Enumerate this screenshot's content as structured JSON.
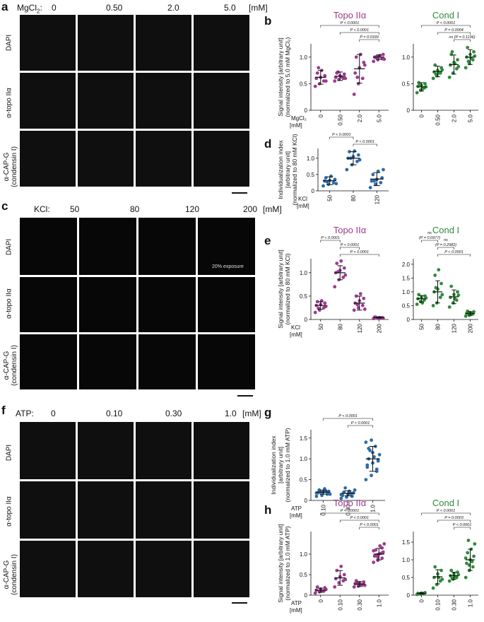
{
  "a": {
    "label": "a",
    "header_prefix": "MgCl",
    "header_sub": "2",
    "header_colon": ":",
    "cols": [
      "0",
      "0.50",
      "2.0",
      "5.0"
    ],
    "unit": "[mM]",
    "rows": [
      [
        "DAPI"
      ],
      [
        "α-topo IIα"
      ],
      [
        "α-CAP-G",
        "(condensin I)"
      ]
    ]
  },
  "c": {
    "label": "c",
    "header_prefix": "KCl:",
    "cols": [
      "50",
      "80",
      "120",
      "200"
    ],
    "unit": "[mM]",
    "rows": [
      [
        "DAPI"
      ],
      [
        "α-topo IIα"
      ],
      [
        "α-CAP-G",
        "(condensin I)"
      ]
    ],
    "note": "20% exposure"
  },
  "f": {
    "label": "f",
    "header_prefix": "ATP:",
    "cols": [
      "0",
      "0.10",
      "0.30",
      "1.0"
    ],
    "unit": "[mM]",
    "rows": [
      [
        "DAPI"
      ],
      [
        "α-topo IIα"
      ],
      [
        "α-CAP-G",
        "(condensin I)"
      ]
    ]
  },
  "colors": {
    "topo": "#9b3b8e",
    "cond": "#2f8b3a",
    "indiv": "#2e6ba8"
  },
  "chart_data": [
    {
      "panel": "b",
      "title": "Topo IIα",
      "type": "scatter",
      "ylabel": [
        "Signal intensity  [arbitrary unit]",
        "(normalized to 5.0 mM MgCl₂)"
      ],
      "xaxis_title": [
        "MgCl₂",
        "[mM]"
      ],
      "categories": [
        "0",
        "0.50",
        "2.0",
        "5.0"
      ],
      "ylim": [
        0,
        1.25
      ],
      "yticks": [
        0,
        0.5,
        1.0
      ],
      "ytick_labels": [
        "0",
        "0.5",
        "1.0"
      ],
      "means": [
        0.62,
        0.64,
        0.78,
        1.0
      ],
      "sd": [
        0.13,
        0.08,
        0.27,
        0.04
      ],
      "points": [
        [
          0.45,
          0.5,
          0.55,
          0.6,
          0.62,
          0.65,
          0.7,
          0.75,
          0.55,
          0.8
        ],
        [
          0.55,
          0.58,
          0.6,
          0.62,
          0.65,
          0.68,
          0.7,
          0.63,
          0.6,
          0.72
        ],
        [
          0.3,
          0.5,
          0.6,
          0.7,
          0.8,
          0.9,
          1.0,
          1.05,
          0.85,
          0.62
        ],
        [
          0.92,
          0.95,
          0.97,
          1.0,
          1.02,
          1.05,
          0.99,
          1.03,
          0.96,
          1.01
        ]
      ],
      "comparisons": [
        {
          "from": 0,
          "to": 3,
          "label": "P < 0.0001"
        },
        {
          "from": 1,
          "to": 3,
          "label": "P < 0.0001"
        },
        {
          "from": 2,
          "to": 3,
          "label": "P = 0.0339"
        }
      ]
    },
    {
      "panel": "b",
      "title": "Cond I",
      "type": "scatter",
      "categories": [
        "0",
        "0.50",
        "2.0",
        "5.0"
      ],
      "ylim": [
        0,
        1.25
      ],
      "yticks": [
        0,
        0.5,
        1.0
      ],
      "ytick_labels": [
        "0",
        "0.5",
        "1.0"
      ],
      "means": [
        0.44,
        0.73,
        0.86,
        1.0
      ],
      "sd": [
        0.08,
        0.1,
        0.18,
        0.14
      ],
      "points": [
        [
          0.33,
          0.38,
          0.42,
          0.45,
          0.47,
          0.5,
          0.52,
          0.4,
          0.44,
          0.48
        ],
        [
          0.6,
          0.65,
          0.7,
          0.72,
          0.75,
          0.8,
          0.85,
          0.7,
          0.76,
          0.68
        ],
        [
          0.62,
          0.7,
          0.78,
          0.85,
          0.9,
          0.95,
          1.05,
          0.88,
          0.82,
          1.1
        ],
        [
          0.8,
          0.88,
          0.95,
          1.0,
          1.05,
          1.1,
          1.18,
          0.98,
          1.02,
          0.92
        ]
      ],
      "comparisons": [
        {
          "from": 0,
          "to": 3,
          "label": "P < 0.0001"
        },
        {
          "from": 1,
          "to": 3,
          "label": "P = 0.0004"
        },
        {
          "from": 2,
          "to": 3,
          "label": "ns  (P = 0.1196)"
        }
      ]
    },
    {
      "panel": "d",
      "type": "scatter",
      "ylabel": [
        "Individualization index",
        "[arbitrary unit]",
        "(normalized to 80 mM KCl)"
      ],
      "xaxis_title": [
        "KCl",
        "[mM]"
      ],
      "categories": [
        "50",
        "80",
        "120"
      ],
      "ylim": [
        0,
        1.3
      ],
      "yticks": [
        0,
        0.5,
        1.0
      ],
      "ytick_labels": [
        "0",
        "0.5",
        "1.0"
      ],
      "means": [
        0.31,
        1.0,
        0.36
      ],
      "sd": [
        0.12,
        0.2,
        0.2
      ],
      "points": [
        [
          0.15,
          0.2,
          0.25,
          0.3,
          0.32,
          0.35,
          0.4,
          0.45,
          0.22,
          0.28
        ],
        [
          0.65,
          0.8,
          0.9,
          1.0,
          1.05,
          1.1,
          1.2,
          1.22,
          0.95,
          1.0
        ],
        [
          0.1,
          0.2,
          0.25,
          0.3,
          0.35,
          0.4,
          0.5,
          0.6,
          0.65,
          0.3
        ]
      ],
      "comparisons": [
        {
          "from": 0,
          "to": 1,
          "label": "P < 0.0001"
        },
        {
          "from": 1,
          "to": 2,
          "label": "P < 0.0001"
        }
      ]
    },
    {
      "panel": "e",
      "title": "Topo IIα",
      "type": "scatter",
      "ylabel": [
        "Signal intensity [arbitrary unit]",
        "(normalized to 80 mM KCl)"
      ],
      "xaxis_title": [
        "KCl",
        "[mM]"
      ],
      "categories": [
        "50",
        "80",
        "120",
        "200"
      ],
      "ylim": [
        0,
        1.3
      ],
      "yticks": [
        0,
        0.5,
        1.0
      ],
      "ytick_labels": [
        "0",
        "0.5",
        "1.0"
      ],
      "means": [
        0.3,
        1.0,
        0.35,
        0.04
      ],
      "sd": [
        0.08,
        0.15,
        0.15,
        0.01
      ],
      "points": [
        [
          0.15,
          0.2,
          0.25,
          0.3,
          0.32,
          0.35,
          0.38,
          0.4,
          0.28,
          0.24
        ],
        [
          0.7,
          0.85,
          0.9,
          1.0,
          1.05,
          1.1,
          1.2,
          1.25,
          0.95,
          1.02
        ],
        [
          0.2,
          0.25,
          0.3,
          0.35,
          0.4,
          0.45,
          0.5,
          0.55,
          0.22,
          0.32
        ],
        [
          0.02,
          0.03,
          0.04,
          0.05,
          0.04,
          0.03,
          0.05,
          0.04
        ]
      ],
      "comparisons": [
        {
          "from": 0,
          "to": 1,
          "label": "P < 0.0001"
        },
        {
          "from": 1,
          "to": 2,
          "label": "P < 0.0001"
        },
        {
          "from": 1,
          "to": 3,
          "label": "P < 0.0001"
        }
      ]
    },
    {
      "panel": "e",
      "title": "Cond I",
      "type": "scatter",
      "categories": [
        "50",
        "80",
        "120",
        "200"
      ],
      "ylim": [
        0,
        2.2
      ],
      "yticks": [
        0,
        0.5,
        1.0,
        1.5,
        2.0
      ],
      "ytick_labels": [
        "0",
        "0.5",
        "1.0",
        "1.5",
        "2.0"
      ],
      "means": [
        0.75,
        1.0,
        0.82,
        0.22
      ],
      "sd": [
        0.12,
        0.4,
        0.25,
        0.06
      ],
      "points": [
        [
          0.55,
          0.65,
          0.7,
          0.75,
          0.8,
          0.85,
          0.9,
          0.6,
          0.78
        ],
        [
          0.5,
          0.6,
          0.8,
          1.0,
          1.1,
          1.3,
          1.6,
          1.8,
          0.9,
          1.15
        ],
        [
          0.45,
          0.6,
          0.7,
          0.8,
          0.9,
          1.0,
          1.2,
          0.75,
          0.88
        ],
        [
          0.12,
          0.15,
          0.2,
          0.22,
          0.25,
          0.28,
          0.3,
          0.18
        ]
      ],
      "comparisons": [
        {
          "from": 0,
          "to": 1,
          "label": "ns\n(P = 0.0977)"
        },
        {
          "from": 1,
          "to": 2,
          "label": "ns\n(P = 0.2982)"
        },
        {
          "from": 1,
          "to": 3,
          "label": "P < 0.0001"
        }
      ]
    },
    {
      "panel": "g",
      "type": "scatter",
      "ylabel": [
        "Individualization index",
        "[arbitrary unit]",
        "(normalized to 1.0 mM ATP)"
      ],
      "xaxis_title": [
        "ATP",
        "[mM]"
      ],
      "categories": [
        "0.10",
        "0.30",
        "1.0"
      ],
      "ylim": [
        0,
        1.7
      ],
      "yticks": [
        0,
        0.5,
        1.0,
        1.5
      ],
      "ytick_labels": [
        "0",
        "0.5",
        "1.0",
        "1.5"
      ],
      "means": [
        0.2,
        0.17,
        1.0
      ],
      "sd": [
        0.05,
        0.06,
        0.3
      ],
      "points": [
        [
          0.1,
          0.12,
          0.15,
          0.18,
          0.2,
          0.22,
          0.25,
          0.28,
          0.15,
          0.2,
          0.22,
          0.18
        ],
        [
          0.05,
          0.08,
          0.1,
          0.12,
          0.15,
          0.18,
          0.2,
          0.22,
          0.25,
          0.3,
          0.17,
          0.14
        ],
        [
          0.5,
          0.6,
          0.7,
          0.8,
          0.9,
          0.95,
          1.0,
          1.05,
          1.1,
          1.2,
          1.3,
          1.4,
          1.45,
          0.75,
          0.85,
          1.15,
          0.98,
          1.25
        ]
      ],
      "comparisons": [
        {
          "from": 0,
          "to": 2,
          "label": "P < 0.0001"
        },
        {
          "from": 1,
          "to": 2,
          "label": "P < 0.0001"
        }
      ]
    },
    {
      "panel": "h",
      "title": "Topo IIα",
      "type": "scatter",
      "ylabel": [
        "Signal intensity [arbitrary unit]",
        "(normalized to 1.0 mM ATP)"
      ],
      "xaxis_title": [
        "ATP",
        "[mM]"
      ],
      "categories": [
        "0",
        "0.10",
        "0.30",
        "1.0"
      ],
      "ylim": [
        0,
        1.55
      ],
      "yticks": [
        0,
        0.5,
        1.0
      ],
      "ytick_labels": [
        "0",
        "0.5",
        "1.0"
      ],
      "means": [
        0.12,
        0.42,
        0.27,
        1.0
      ],
      "sd": [
        0.05,
        0.18,
        0.06,
        0.14
      ],
      "points": [
        [
          0.05,
          0.08,
          0.1,
          0.12,
          0.15,
          0.18,
          0.2,
          0.1,
          0.14
        ],
        [
          0.2,
          0.3,
          0.35,
          0.4,
          0.45,
          0.5,
          0.6,
          0.7,
          0.38
        ],
        [
          0.2,
          0.22,
          0.25,
          0.28,
          0.3,
          0.32,
          0.35,
          0.26,
          0.24,
          0.29
        ],
        [
          0.8,
          0.85,
          0.9,
          0.95,
          1.0,
          1.05,
          1.1,
          1.2,
          1.25,
          0.98,
          1.02,
          1.08,
          0.92,
          1.15
        ]
      ],
      "comparisons": [
        {
          "from": 0,
          "to": 3,
          "label": "P < 0.0001"
        },
        {
          "from": 1,
          "to": 3,
          "label": "P < 0.0001"
        },
        {
          "from": 2,
          "to": 3,
          "label": "P < 0.0001"
        }
      ]
    },
    {
      "panel": "h",
      "title": "Cond I",
      "type": "scatter",
      "categories": [
        "0",
        "0.10",
        "0.30",
        "1.0"
      ],
      "ylim": [
        0,
        1.8
      ],
      "yticks": [
        0,
        0.5,
        1.0,
        1.5
      ],
      "ytick_labels": [
        "0",
        "0.5",
        "1.0",
        "1.5"
      ],
      "means": [
        0.05,
        0.52,
        0.55,
        1.0
      ],
      "sd": [
        0.02,
        0.2,
        0.1,
        0.3
      ],
      "points": [
        [
          0.02,
          0.03,
          0.04,
          0.05,
          0.06,
          0.07,
          0.04,
          0.05
        ],
        [
          0.2,
          0.3,
          0.4,
          0.5,
          0.6,
          0.7,
          0.8,
          0.5,
          0.45
        ],
        [
          0.4,
          0.45,
          0.5,
          0.55,
          0.6,
          0.65,
          0.7,
          0.52,
          0.58,
          0.48
        ],
        [
          0.5,
          0.7,
          0.8,
          0.9,
          1.0,
          1.1,
          1.2,
          1.3,
          1.45,
          1.55,
          0.95,
          1.05,
          0.85
        ]
      ],
      "comparisons": [
        {
          "from": 0,
          "to": 3,
          "label": "P < 0.0001"
        },
        {
          "from": 1,
          "to": 3,
          "label": "P = 0.0003"
        },
        {
          "from": 2,
          "to": 3,
          "label": "P < 0.0001"
        }
      ]
    }
  ]
}
